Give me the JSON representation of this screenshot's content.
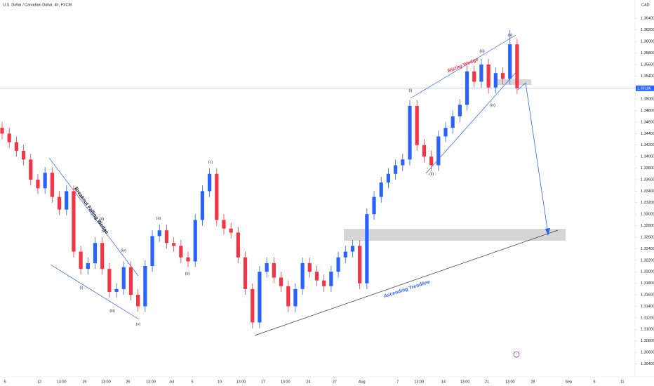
{
  "chart_data": {
    "type": "candlestick",
    "title": "U.S. Dollar / Canadian Dollar, 4h, FXCM",
    "currency": "CAD",
    "last_price": 1.35186,
    "up_color": "#2962ff",
    "down_color": "#f23645",
    "grid": false,
    "open": [
      1.345,
      1.344,
      1.3425,
      1.341,
      1.3395,
      1.336,
      1.3345,
      1.3372,
      1.333,
      1.3308,
      1.334,
      1.3235,
      1.3205,
      1.3215,
      1.325,
      1.3205,
      1.3165,
      1.317,
      1.3208,
      1.316,
      1.314,
      1.321,
      1.3262,
      1.3272,
      1.325,
      1.3245,
      1.3225,
      1.3218,
      1.329,
      1.334,
      1.337,
      1.329,
      1.3275,
      1.3268,
      1.3225,
      1.317,
      1.3112,
      1.32,
      1.3215,
      1.319,
      1.3175,
      1.314,
      1.317,
      1.3215,
      1.32,
      1.3185,
      1.3175,
      1.32,
      1.3225,
      1.3235,
      1.3245,
      1.318,
      1.33,
      1.333,
      1.3355,
      1.337,
      1.3385,
      1.3395,
      1.3488,
      1.342,
      1.34,
      1.3385,
      1.3435,
      1.345,
      1.347,
      1.349,
      1.3548,
      1.353,
      1.356,
      1.352,
      1.3545,
      1.3535,
      1.3595
    ],
    "high": [
      1.346,
      1.345,
      1.3435,
      1.342,
      1.3405,
      1.337,
      1.3382,
      1.3382,
      1.334,
      1.335,
      1.335,
      1.3245,
      1.3225,
      1.326,
      1.326,
      1.3215,
      1.318,
      1.3218,
      1.3218,
      1.317,
      1.322,
      1.3272,
      1.3282,
      1.3282,
      1.326,
      1.3255,
      1.3235,
      1.33,
      1.335,
      1.338,
      1.338,
      1.33,
      1.3285,
      1.3278,
      1.3235,
      1.318,
      1.321,
      1.3225,
      1.3225,
      1.32,
      1.3185,
      1.318,
      1.3225,
      1.3225,
      1.321,
      1.3195,
      1.321,
      1.3235,
      1.3245,
      1.3255,
      1.3255,
      1.331,
      1.334,
      1.3365,
      1.338,
      1.3395,
      1.3405,
      1.3498,
      1.3498,
      1.343,
      1.341,
      1.3445,
      1.346,
      1.348,
      1.35,
      1.3558,
      1.3558,
      1.357,
      1.357,
      1.3555,
      1.3555,
      1.362,
      1.3605
    ],
    "low": [
      1.343,
      1.3415,
      1.34,
      1.3385,
      1.335,
      1.3335,
      1.3335,
      1.332,
      1.3298,
      1.3298,
      1.3225,
      1.3195,
      1.3195,
      1.3205,
      1.3195,
      1.3155,
      1.3155,
      1.316,
      1.315,
      1.313,
      1.313,
      1.32,
      1.3252,
      1.324,
      1.3235,
      1.3215,
      1.3208,
      1.3208,
      1.328,
      1.333,
      1.328,
      1.3265,
      1.3258,
      1.3215,
      1.316,
      1.3102,
      1.3102,
      1.319,
      1.318,
      1.3165,
      1.313,
      1.313,
      1.316,
      1.319,
      1.3175,
      1.3165,
      1.3165,
      1.319,
      1.3215,
      1.3225,
      1.317,
      1.317,
      1.329,
      1.332,
      1.3345,
      1.336,
      1.3375,
      1.3385,
      1.341,
      1.339,
      1.3375,
      1.3375,
      1.3425,
      1.344,
      1.346,
      1.348,
      1.352,
      1.352,
      1.351,
      1.351,
      1.3525,
      1.3525,
      1.3509
    ],
    "close": [
      1.344,
      1.3425,
      1.341,
      1.3395,
      1.336,
      1.3345,
      1.3372,
      1.333,
      1.3308,
      1.334,
      1.3235,
      1.3205,
      1.3215,
      1.325,
      1.3205,
      1.3165,
      1.317,
      1.3208,
      1.316,
      1.314,
      1.321,
      1.3262,
      1.3272,
      1.325,
      1.3245,
      1.3225,
      1.3218,
      1.329,
      1.334,
      1.337,
      1.329,
      1.3275,
      1.3268,
      1.3225,
      1.317,
      1.3112,
      1.32,
      1.3215,
      1.319,
      1.3175,
      1.314,
      1.317,
      1.3215,
      1.32,
      1.3185,
      1.3175,
      1.32,
      1.3225,
      1.3235,
      1.3245,
      1.318,
      1.33,
      1.333,
      1.3355,
      1.337,
      1.3385,
      1.3395,
      1.3488,
      1.342,
      1.34,
      1.3385,
      1.3435,
      1.345,
      1.347,
      1.349,
      1.3548,
      1.353,
      1.356,
      1.352,
      1.3545,
      1.3535,
      1.3595,
      1.3519
    ],
    "xlim": [
      0,
      88
    ],
    "xticks": [
      {
        "value": 0.4,
        "label": "6"
      },
      {
        "value": 5.2,
        "label": "12"
      },
      {
        "value": 8.3,
        "label": "13:00"
      },
      {
        "value": 11.5,
        "label": "19"
      },
      {
        "value": 14.5,
        "label": "13:00"
      },
      {
        "value": 17.6,
        "label": "26"
      },
      {
        "value": 20.8,
        "label": "13:00"
      },
      {
        "value": 23.7,
        "label": "Jul"
      },
      {
        "value": 26.6,
        "label": "5"
      },
      {
        "value": 30.4,
        "label": "10"
      },
      {
        "value": 33.4,
        "label": "13:00"
      },
      {
        "value": 36.5,
        "label": "17"
      },
      {
        "value": 39.6,
        "label": "13:00"
      },
      {
        "value": 42.8,
        "label": "24"
      },
      {
        "value": 46.5,
        "label": "27"
      },
      {
        "value": 50.3,
        "label": "Aug"
      },
      {
        "value": 55.3,
        "label": "7"
      },
      {
        "value": 58.3,
        "label": "13:00"
      },
      {
        "value": 61.7,
        "label": "14"
      },
      {
        "value": 64.7,
        "label": "13:00"
      },
      {
        "value": 67.8,
        "label": "21"
      },
      {
        "value": 71,
        "label": "13:00"
      },
      {
        "value": 74.2,
        "label": "28"
      },
      {
        "value": 79.2,
        "label": "Sep"
      },
      {
        "value": 82.8,
        "label": "6"
      },
      {
        "value": 86.7,
        "label": "11"
      }
    ],
    "ylim": [
      1.3026,
      1.3672
    ],
    "yticks": [
      {
        "value": 1.304,
        "label": "1.30400"
      },
      {
        "value": 1.306,
        "label": "1.30600"
      },
      {
        "value": 1.308,
        "label": "1.30800"
      },
      {
        "value": 1.31,
        "label": "1.31000"
      },
      {
        "value": 1.312,
        "label": "1.31200"
      },
      {
        "value": 1.314,
        "label": "1.31400"
      },
      {
        "value": 1.316,
        "label": "1.31600"
      },
      {
        "value": 1.318,
        "label": "1.31800"
      },
      {
        "value": 1.32,
        "label": "1.32000"
      },
      {
        "value": 1.322,
        "label": "1.32200"
      },
      {
        "value": 1.324,
        "label": "1.32400"
      },
      {
        "value": 1.326,
        "label": "1.32600"
      },
      {
        "value": 1.328,
        "label": "1.32800"
      },
      {
        "value": 1.33,
        "label": "1.33000"
      },
      {
        "value": 1.332,
        "label": "1.33200"
      },
      {
        "value": 1.334,
        "label": "1.33400"
      },
      {
        "value": 1.336,
        "label": "1.33600"
      },
      {
        "value": 1.338,
        "label": "1.33800"
      },
      {
        "value": 1.34,
        "label": "1.34000"
      },
      {
        "value": 1.342,
        "label": "1.34200"
      },
      {
        "value": 1.344,
        "label": "1.34400"
      },
      {
        "value": 1.346,
        "label": "1.34600"
      },
      {
        "value": 1.348,
        "label": "1.34800"
      },
      {
        "value": 1.35,
        "label": "1.35000"
      },
      {
        "value": 1.354,
        "label": "1.35400"
      },
      {
        "value": 1.356,
        "label": "1.35600"
      },
      {
        "value": 1.358,
        "label": "1.35800"
      },
      {
        "value": 1.36,
        "label": "1.36000"
      },
      {
        "value": 1.362,
        "label": "1.36200"
      },
      {
        "value": 1.364,
        "label": "1.36400"
      }
    ],
    "wave_labels": [
      "(i)",
      "(ii)",
      "(iii)",
      "(iv)",
      "(v)",
      "(a)",
      "(b)",
      "(c)",
      "(i)",
      "(ii)",
      "(iii)",
      "(iv)",
      "(v)"
    ],
    "pattern_labels": [
      "Breakout Falling Wedge",
      "Rising Wedge",
      "Ascending Trendline"
    ]
  }
}
